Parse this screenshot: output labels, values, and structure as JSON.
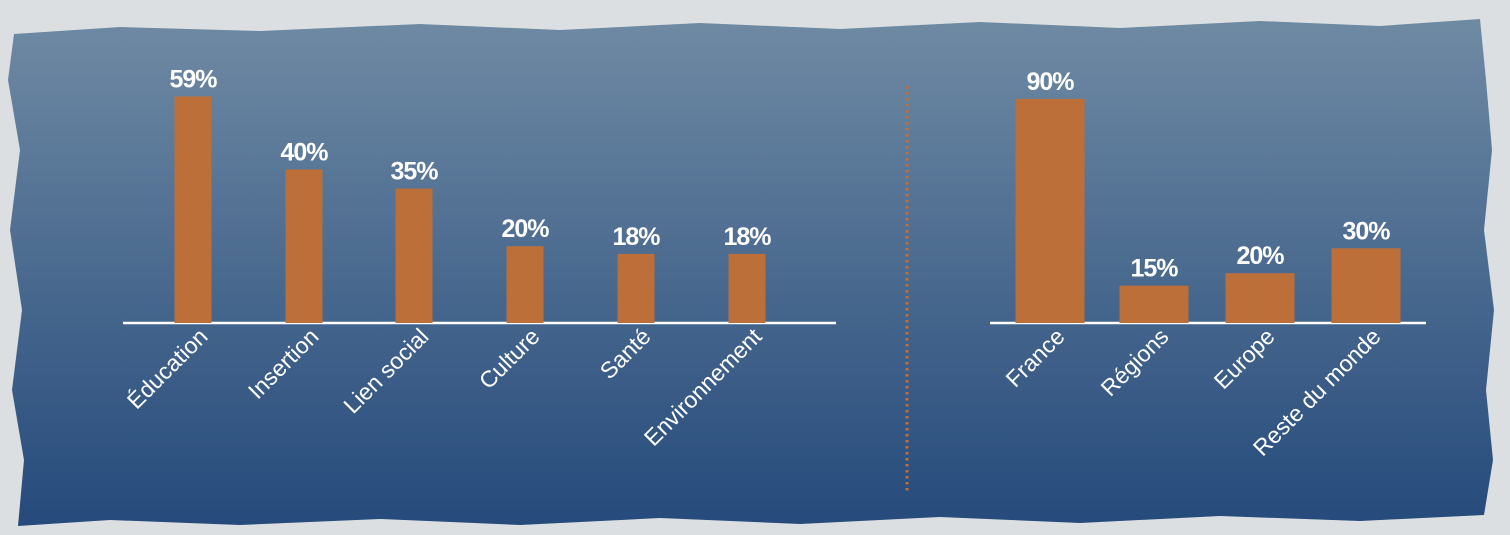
{
  "colors": {
    "panel_top": "#6f8aa3",
    "panel_bottom": "#254a7b",
    "bar": "#bd6f3a",
    "baseline": "#ffffff",
    "divider": "#c46e36",
    "text": "#ffffff"
  },
  "chart_data": [
    {
      "type": "bar",
      "categories": [
        "Éducation",
        "Insertion",
        "Lien social",
        "Culture",
        "Santé",
        "Environnement"
      ],
      "values": [
        59,
        40,
        35,
        20,
        18,
        18
      ],
      "value_labels": [
        "59%",
        "40%",
        "35%",
        "20%",
        "18%",
        "18%"
      ],
      "ylim": [
        0,
        100
      ],
      "grid": false,
      "legend": "none"
    },
    {
      "type": "bar",
      "categories": [
        "France",
        "Régions",
        "Europe",
        "Reste du monde"
      ],
      "values": [
        90,
        15,
        20,
        30
      ],
      "value_labels": [
        "90%",
        "15%",
        "20%",
        "30%"
      ],
      "ylim": [
        0,
        100
      ],
      "grid": false,
      "legend": "none"
    }
  ]
}
